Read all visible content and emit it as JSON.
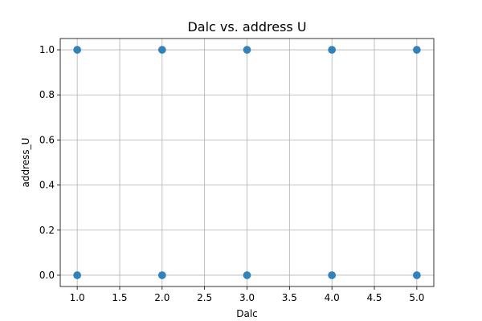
{
  "chart_data": {
    "type": "scatter",
    "title": "Dalc vs. address U",
    "xlabel": "Dalc",
    "ylabel": "address_U",
    "xlim": [
      0.8,
      5.2
    ],
    "ylim": [
      -0.05,
      1.05
    ],
    "xticks": [
      1.0,
      1.5,
      2.0,
      2.5,
      3.0,
      3.5,
      4.0,
      4.5,
      5.0
    ],
    "xtick_labels": [
      "1.0",
      "1.5",
      "2.0",
      "2.5",
      "3.0",
      "3.5",
      "4.0",
      "4.5",
      "5.0"
    ],
    "yticks": [
      0.0,
      0.2,
      0.4,
      0.6,
      0.8,
      1.0
    ],
    "ytick_labels": [
      "0.0",
      "0.2",
      "0.4",
      "0.6",
      "0.8",
      "1.0"
    ],
    "grid": true,
    "marker_color": "#1f77b4",
    "points": [
      {
        "x": 1,
        "y": 1
      },
      {
        "x": 2,
        "y": 1
      },
      {
        "x": 3,
        "y": 1
      },
      {
        "x": 4,
        "y": 1
      },
      {
        "x": 5,
        "y": 1
      },
      {
        "x": 1,
        "y": 0
      },
      {
        "x": 2,
        "y": 0
      },
      {
        "x": 3,
        "y": 0
      },
      {
        "x": 4,
        "y": 0
      },
      {
        "x": 5,
        "y": 0
      }
    ]
  }
}
